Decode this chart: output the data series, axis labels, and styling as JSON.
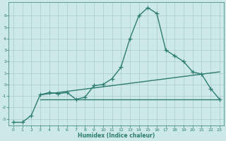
{
  "x": [
    0,
    1,
    2,
    3,
    4,
    5,
    6,
    7,
    8,
    9,
    10,
    11,
    12,
    13,
    14,
    15,
    16,
    17,
    18,
    19,
    20,
    21,
    22,
    23
  ],
  "y_main": [
    -3.3,
    -3.3,
    -2.7,
    -0.9,
    -0.7,
    -0.8,
    -0.7,
    -1.3,
    -1.1,
    -0.1,
    0.0,
    0.5,
    1.5,
    4.0,
    6.0,
    6.7,
    6.2,
    3.0,
    2.5,
    2.0,
    1.1,
    0.9,
    -0.35,
    -1.3
  ],
  "trend1_x": [
    3,
    23
  ],
  "trend1_y": [
    -0.9,
    1.1
  ],
  "trend2_x": [
    3,
    23
  ],
  "trend2_y": [
    -1.3,
    -1.3
  ],
  "xlabel": "Humidex (Indice chaleur)",
  "xlim": [
    -0.5,
    23.5
  ],
  "ylim": [
    -3.6,
    7.2
  ],
  "yticks": [
    -3,
    -2,
    -1,
    0,
    1,
    2,
    3,
    4,
    5,
    6
  ],
  "xticks": [
    0,
    1,
    2,
    3,
    4,
    5,
    6,
    7,
    8,
    9,
    10,
    11,
    12,
    13,
    14,
    15,
    16,
    17,
    18,
    19,
    20,
    21,
    22,
    23
  ],
  "color_main": "#2d7d6e",
  "color_bg": "#cce8e8",
  "color_grid": "#aacccc",
  "marker_size": 4.0,
  "line_width": 1.0
}
